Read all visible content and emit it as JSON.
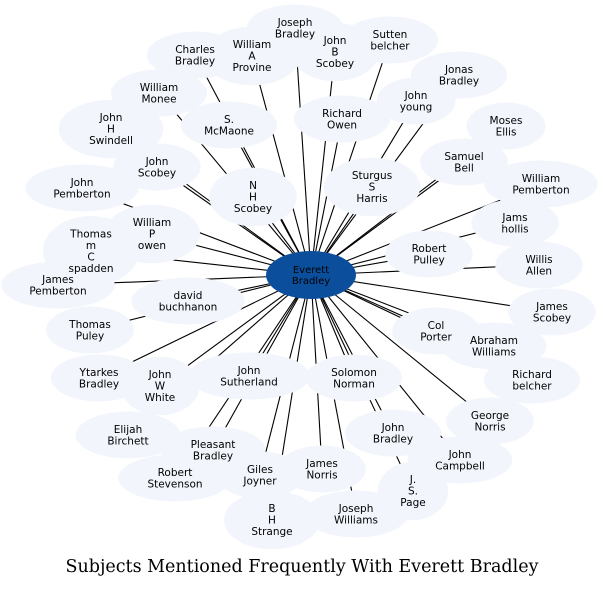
{
  "title": "Subjects Mentioned Frequently With Everett Bradley",
  "colors": {
    "center_fill": "#0b4f9c",
    "bubble_fill": "#f2f6fc",
    "edge": "#000000",
    "text": "#000000"
  },
  "center": {
    "id": "everett-bradley",
    "label": "Everett Bradley"
  },
  "nodes": [
    {
      "id": "joseph-bradley",
      "label": "Joseph Bradley"
    },
    {
      "id": "sutten-belcher",
      "label": "Sutten belcher"
    },
    {
      "id": "charles-bradley",
      "label": "Charles Bradley"
    },
    {
      "id": "william-a-provine",
      "label": "William A Provine"
    },
    {
      "id": "john-b-scobey",
      "label": "John B Scobey"
    },
    {
      "id": "jonas-bradley",
      "label": "Jonas Bradley"
    },
    {
      "id": "william-monee",
      "label": "William Monee"
    },
    {
      "id": "john-young",
      "label": "John young"
    },
    {
      "id": "richard-owen",
      "label": "Richard Owen"
    },
    {
      "id": "moses-ellis",
      "label": "Moses Ellis"
    },
    {
      "id": "john-h-swindell",
      "label": "John H Swindell"
    },
    {
      "id": "s-mcmaone",
      "label": "S. McMaone"
    },
    {
      "id": "samuel-bell",
      "label": "Samuel Bell"
    },
    {
      "id": "john-scobey",
      "label": "John Scobey"
    },
    {
      "id": "sturgus-s-harris",
      "label": "Sturgus S Harris"
    },
    {
      "id": "john-pemberton",
      "label": "John Pemberton"
    },
    {
      "id": "william-pemberton",
      "label": "William Pemberton"
    },
    {
      "id": "n-h-scobey",
      "label": "N H Scobey"
    },
    {
      "id": "jams-hollis",
      "label": "Jams hollis"
    },
    {
      "id": "william-p-owen",
      "label": "William P owen"
    },
    {
      "id": "thomas-m-c-spadden",
      "label": "Thomas m C spadden"
    },
    {
      "id": "robert-pulley",
      "label": "Robert Pulley"
    },
    {
      "id": "james-pemberton",
      "label": "James Pemberton"
    },
    {
      "id": "willis-allen",
      "label": "Willis Allen"
    },
    {
      "id": "david-buchhanon",
      "label": "david buchhanon"
    },
    {
      "id": "james-scobey",
      "label": "James Scobey"
    },
    {
      "id": "thomas-puley",
      "label": "Thomas Puley"
    },
    {
      "id": "col-porter",
      "label": "Col Porter"
    },
    {
      "id": "abraham-williams",
      "label": "Abraham Williams"
    },
    {
      "id": "richard-belcher",
      "label": "Richard belcher"
    },
    {
      "id": "ytarkes-bradley",
      "label": "Ytarkes Bradley"
    },
    {
      "id": "john-w-white",
      "label": "John W White"
    },
    {
      "id": "john-sutherland",
      "label": "John Sutherland"
    },
    {
      "id": "solomon-norman",
      "label": "Solomon Norman"
    },
    {
      "id": "george-norris",
      "label": "George Norris"
    },
    {
      "id": "elijah-birchett",
      "label": "Elijah Birchett"
    },
    {
      "id": "john-bradley",
      "label": "John Bradley"
    },
    {
      "id": "pleasant-bradley",
      "label": "Pleasant Bradley"
    },
    {
      "id": "john-campbell",
      "label": "John Campbell"
    },
    {
      "id": "robert-stevenson",
      "label": "Robert Stevenson"
    },
    {
      "id": "giles-joyner",
      "label": "Giles Joyner"
    },
    {
      "id": "james-norris",
      "label": "James Norris"
    },
    {
      "id": "j-s-page",
      "label": "J. S. Page"
    },
    {
      "id": "b-h-strange",
      "label": "B H Strange"
    },
    {
      "id": "joseph-williams",
      "label": "Joseph Williams"
    }
  ]
}
